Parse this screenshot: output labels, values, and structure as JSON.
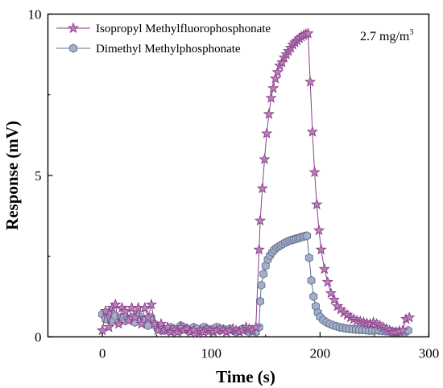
{
  "chart_data": {
    "type": "line",
    "xlabel": "Time (s)",
    "ylabel": "Response  (mV)",
    "xlim": [
      -50,
      300
    ],
    "ylim": [
      0,
      10
    ],
    "xticks": [
      0,
      100,
      200,
      300
    ],
    "yticks": [
      0,
      5,
      10
    ],
    "grid": false,
    "legend_position": "top-left",
    "annotation": {
      "text": "2.7 mg/m",
      "sup": "3"
    },
    "series": [
      {
        "name": "Isopropyl Methylfluorophosphonate",
        "marker": "star",
        "color": "#8a3f8a",
        "fill": "#b783b7",
        "x": [
          0,
          3,
          6,
          9,
          12,
          15,
          18,
          21,
          24,
          27,
          30,
          33,
          36,
          39,
          42,
          45,
          48,
          51,
          54,
          57,
          60,
          63,
          66,
          69,
          72,
          75,
          78,
          81,
          84,
          87,
          90,
          93,
          96,
          99,
          102,
          105,
          108,
          111,
          114,
          117,
          120,
          123,
          126,
          129,
          132,
          135,
          138,
          141,
          144,
          145,
          147,
          149,
          151,
          153,
          155,
          157,
          159,
          161,
          163,
          165,
          167,
          169,
          171,
          173,
          175,
          177,
          179,
          181,
          183,
          185,
          187,
          189,
          191,
          193,
          195,
          197,
          199,
          201,
          204,
          207,
          210,
          213,
          216,
          219,
          222,
          225,
          228,
          231,
          234,
          237,
          240,
          243,
          246,
          249,
          252,
          255,
          258,
          261,
          264,
          267,
          270,
          273,
          276,
          279,
          282
        ],
        "y": [
          0.2,
          0.8,
          0.3,
          0.9,
          1.0,
          0.4,
          0.9,
          0.8,
          0.5,
          0.9,
          0.6,
          0.9,
          0.4,
          0.9,
          0.6,
          1.0,
          0.4,
          0.2,
          0.4,
          0.2,
          0.3,
          0.15,
          0.2,
          0.15,
          0.3,
          0.2,
          0.25,
          0.15,
          0.2,
          0.1,
          0.2,
          0.15,
          0.25,
          0.2,
          0.15,
          0.2,
          0.25,
          0.2,
          0.15,
          0.2,
          0.25,
          0.2,
          0.15,
          0.2,
          0.3,
          0.25,
          0.2,
          0.3,
          2.7,
          3.6,
          4.6,
          5.5,
          6.3,
          6.9,
          7.4,
          7.7,
          8.0,
          8.2,
          8.4,
          8.5,
          8.65,
          8.75,
          8.85,
          8.95,
          9.05,
          9.12,
          9.18,
          9.25,
          9.3,
          9.35,
          9.38,
          9.4,
          7.9,
          6.35,
          5.1,
          4.1,
          3.3,
          2.7,
          2.1,
          1.7,
          1.35,
          1.15,
          0.95,
          0.85,
          0.75,
          0.68,
          0.6,
          0.55,
          0.5,
          0.48,
          0.45,
          0.42,
          0.4,
          0.45,
          0.4,
          0.35,
          0.3,
          0.25,
          0.2,
          0.15,
          0.15,
          0.18,
          0.2,
          0.55,
          0.6
        ]
      },
      {
        "name": "Dimethyl Methylphosphonate",
        "marker": "hexagon",
        "color": "#5f6e8e",
        "fill": "#a4b0c9",
        "x": [
          0,
          3,
          6,
          9,
          12,
          15,
          18,
          21,
          24,
          27,
          30,
          33,
          36,
          39,
          42,
          45,
          48,
          51,
          54,
          57,
          60,
          63,
          66,
          69,
          72,
          75,
          78,
          81,
          84,
          87,
          90,
          93,
          96,
          99,
          102,
          105,
          108,
          111,
          114,
          117,
          120,
          123,
          126,
          129,
          132,
          135,
          138,
          141,
          144,
          145,
          146,
          148,
          150,
          152,
          154,
          156,
          158,
          160,
          162,
          164,
          166,
          168,
          170,
          172,
          174,
          176,
          178,
          180,
          182,
          184,
          186,
          188,
          190,
          192,
          194,
          196,
          198,
          200,
          203,
          206,
          209,
          212,
          215,
          218,
          221,
          224,
          227,
          230,
          233,
          236,
          239,
          242,
          245,
          248,
          251,
          254,
          257,
          260,
          263,
          266,
          269,
          272,
          275,
          278,
          281
        ],
        "y": [
          0.7,
          0.55,
          0.75,
          0.5,
          0.65,
          0.45,
          0.6,
          0.5,
          0.55,
          0.6,
          0.45,
          0.65,
          0.5,
          0.55,
          0.35,
          0.6,
          0.4,
          0.25,
          0.3,
          0.2,
          0.25,
          0.3,
          0.25,
          0.2,
          0.35,
          0.3,
          0.25,
          0.2,
          0.3,
          0.25,
          0.2,
          0.3,
          0.25,
          0.2,
          0.25,
          0.3,
          0.2,
          0.25,
          0.2,
          0.25,
          0.2,
          0.15,
          0.2,
          0.25,
          0.2,
          0.15,
          0.2,
          0.15,
          0.3,
          1.1,
          1.6,
          1.95,
          2.2,
          2.4,
          2.52,
          2.62,
          2.7,
          2.76,
          2.8,
          2.84,
          2.88,
          2.92,
          2.95,
          2.98,
          3.0,
          3.02,
          3.04,
          3.06,
          3.08,
          3.1,
          3.12,
          3.13,
          2.45,
          1.75,
          1.25,
          0.95,
          0.75,
          0.62,
          0.52,
          0.45,
          0.4,
          0.36,
          0.33,
          0.3,
          0.28,
          0.26,
          0.25,
          0.24,
          0.23,
          0.22,
          0.22,
          0.21,
          0.2,
          0.2,
          0.21,
          0.2,
          0.19,
          0.18,
          0.17,
          0.16,
          0.15,
          0.15,
          0.14,
          0.14,
          0.2
        ]
      }
    ]
  }
}
